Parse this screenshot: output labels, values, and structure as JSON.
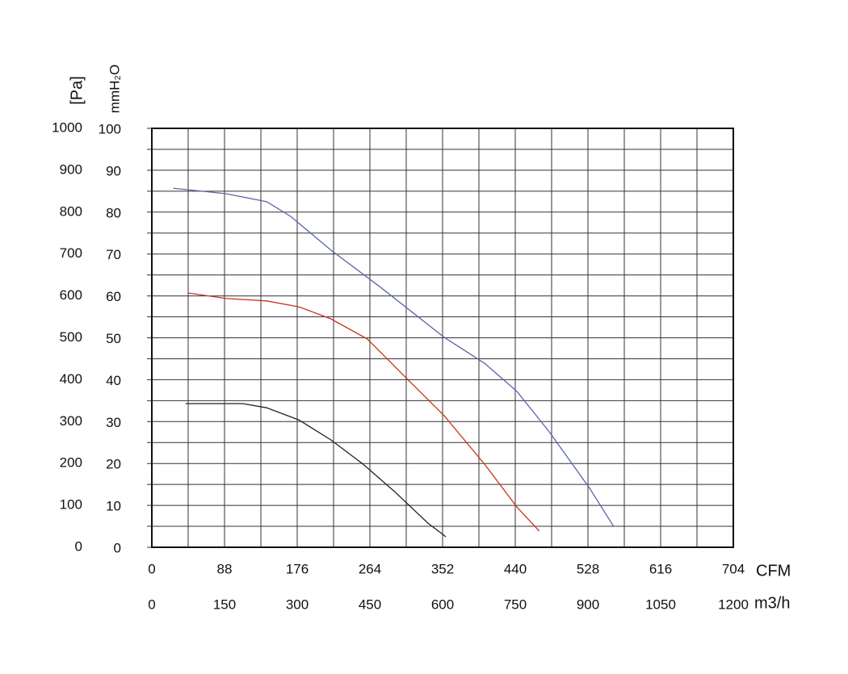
{
  "chart_data": {
    "type": "line",
    "x_label": "CFM",
    "x2_label": "m3/h",
    "y_label": "[Pa]",
    "y2_label": "mmH₂O",
    "xlim": [
      0,
      704
    ],
    "xticks": [
      0,
      88,
      176,
      264,
      352,
      440,
      528,
      616,
      704
    ],
    "xminorticks": [
      44,
      132,
      220,
      308,
      396,
      484,
      572,
      660
    ],
    "x2lim": [
      0,
      1200
    ],
    "x2ticks": [
      0,
      150,
      300,
      450,
      600,
      750,
      900,
      1050,
      1200
    ],
    "ylim": [
      0,
      1000
    ],
    "yticks": [
      0,
      100,
      200,
      300,
      400,
      500,
      600,
      700,
      800,
      900,
      1000
    ],
    "yminorticks": [
      50,
      150,
      250,
      350,
      450,
      550,
      650,
      750,
      850,
      950
    ],
    "y2lim": [
      0,
      100
    ],
    "y2ticks": [
      0,
      10,
      20,
      30,
      40,
      50,
      60,
      70,
      80,
      90,
      100
    ],
    "grid": true,
    "series": [
      {
        "color": "#5a64a8",
        "x": [
          26,
          90,
          139,
          168,
          217,
          276,
          354,
          403,
          442,
          481,
          530,
          559
        ],
        "values": [
          857,
          844,
          825,
          790,
          709,
          622,
          501,
          439,
          372,
          276,
          141,
          50
        ]
      },
      {
        "color": "#c8321e",
        "x": [
          44,
          90,
          139,
          178,
          217,
          261,
          305,
          354,
          403,
          442,
          469
        ],
        "values": [
          607,
          594,
          588,
          574,
          545,
          497,
          410,
          314,
          198,
          96,
          39
        ]
      },
      {
        "color": "#222222",
        "x": [
          41,
          110,
          139,
          178,
          217,
          256,
          295,
          334,
          356
        ],
        "values": [
          343,
          343,
          333,
          304,
          256,
          198,
          131,
          58,
          25
        ]
      }
    ]
  }
}
